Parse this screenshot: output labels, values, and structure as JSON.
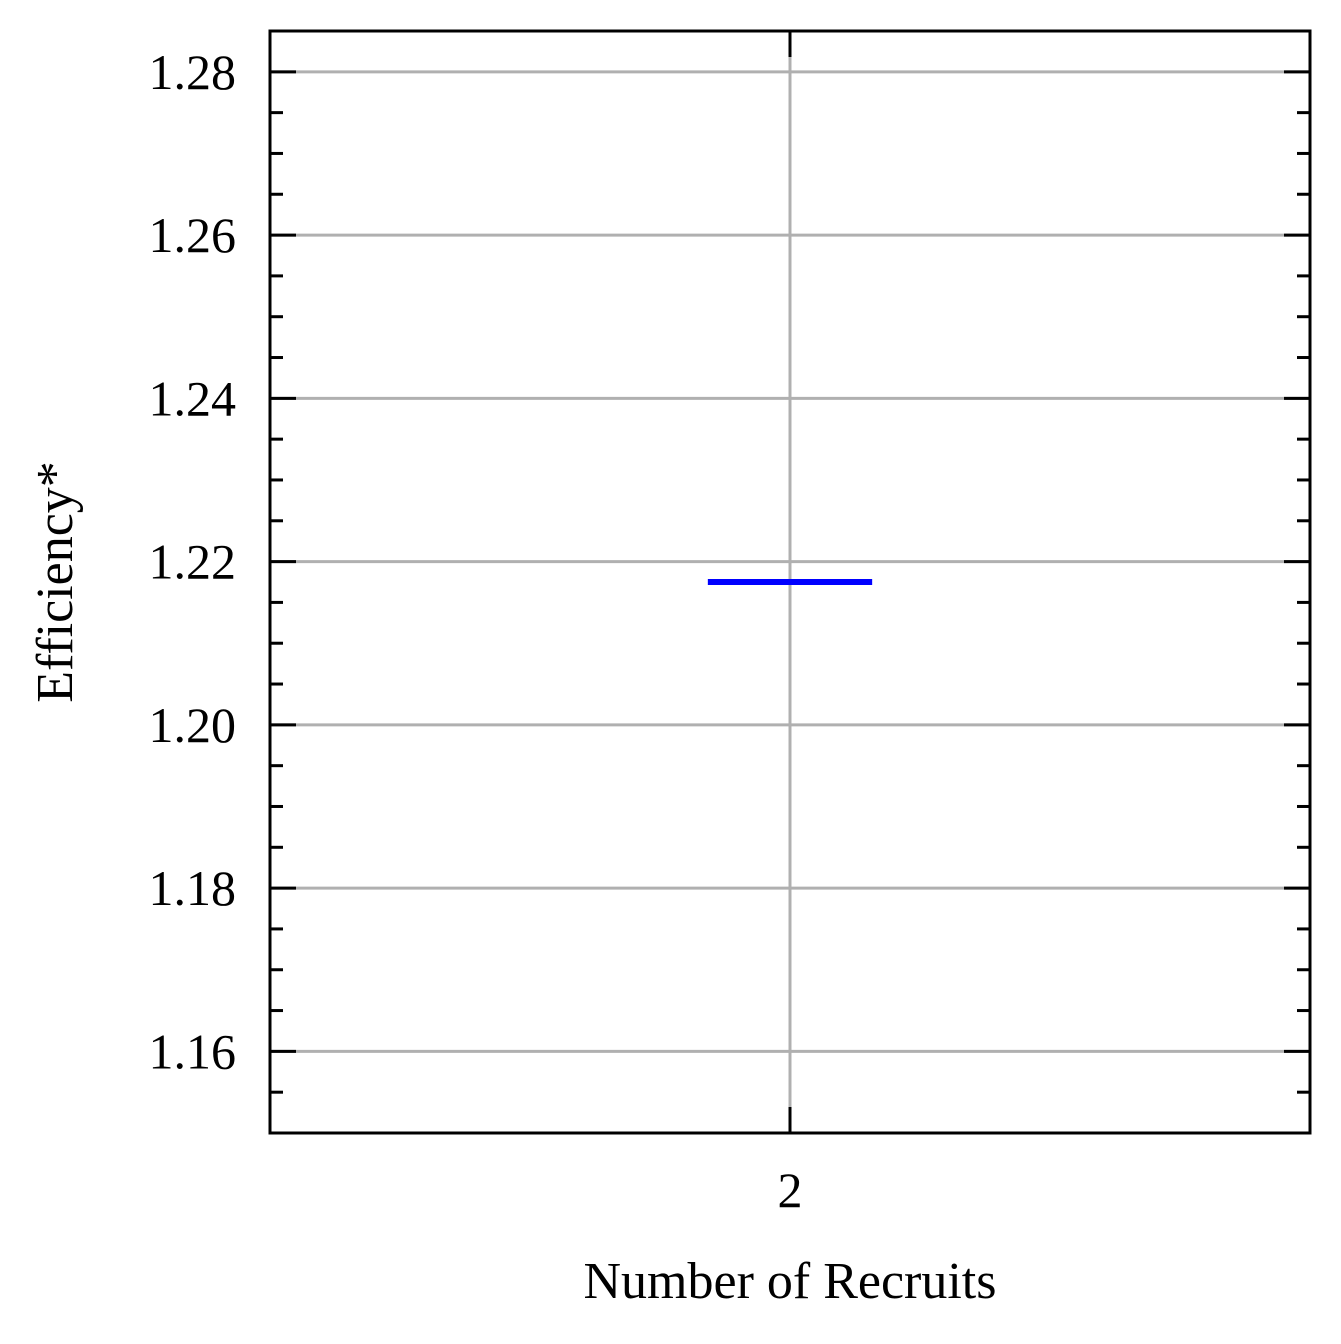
{
  "chart_data": {
    "type": "box",
    "categories": [
      "2"
    ],
    "series": [
      {
        "values": [
          1.2175
        ],
        "color": "#0000ff"
      }
    ],
    "xlabel": "Number of Recruits",
    "ylabel": "Efficiency*",
    "ylim": [
      1.15,
      1.285
    ],
    "yticks": [
      1.16,
      1.18,
      1.2,
      1.22,
      1.24,
      1.26,
      1.28
    ],
    "ytick_labels": [
      "1.16",
      "1.18",
      "1.20",
      "1.22",
      "1.24",
      "1.26",
      "1.28"
    ],
    "yminor_step": 0.005,
    "xtick_labels": [
      "2"
    ],
    "grid": true,
    "ticks_direction": "in"
  }
}
